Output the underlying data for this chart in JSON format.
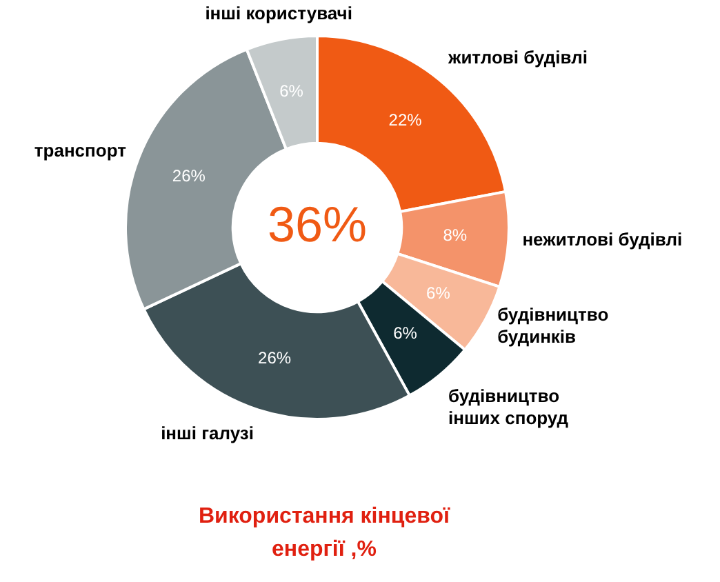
{
  "chart_data": {
    "type": "donut",
    "title": "Використання кінцевої енергії ,%",
    "categories": [
      "житлові будівлі",
      "нежитлові будівлі",
      "будівництво будинків",
      "будівництво інших споруд",
      "інші галузі",
      "транспорт",
      "інші користувачі"
    ],
    "values": [
      22,
      8,
      6,
      6,
      26,
      26,
      6
    ],
    "value_labels": [
      "22%",
      "8%",
      "6%",
      "6%",
      "26%",
      "26%",
      "6%"
    ],
    "colors": [
      "#f05a14",
      "#f4936a",
      "#f8b899",
      "#0e2a30",
      "#3d5055",
      "#8a9598",
      "#c4cacb"
    ],
    "annotations": [
      "36%"
    ],
    "legend": false
  }
}
